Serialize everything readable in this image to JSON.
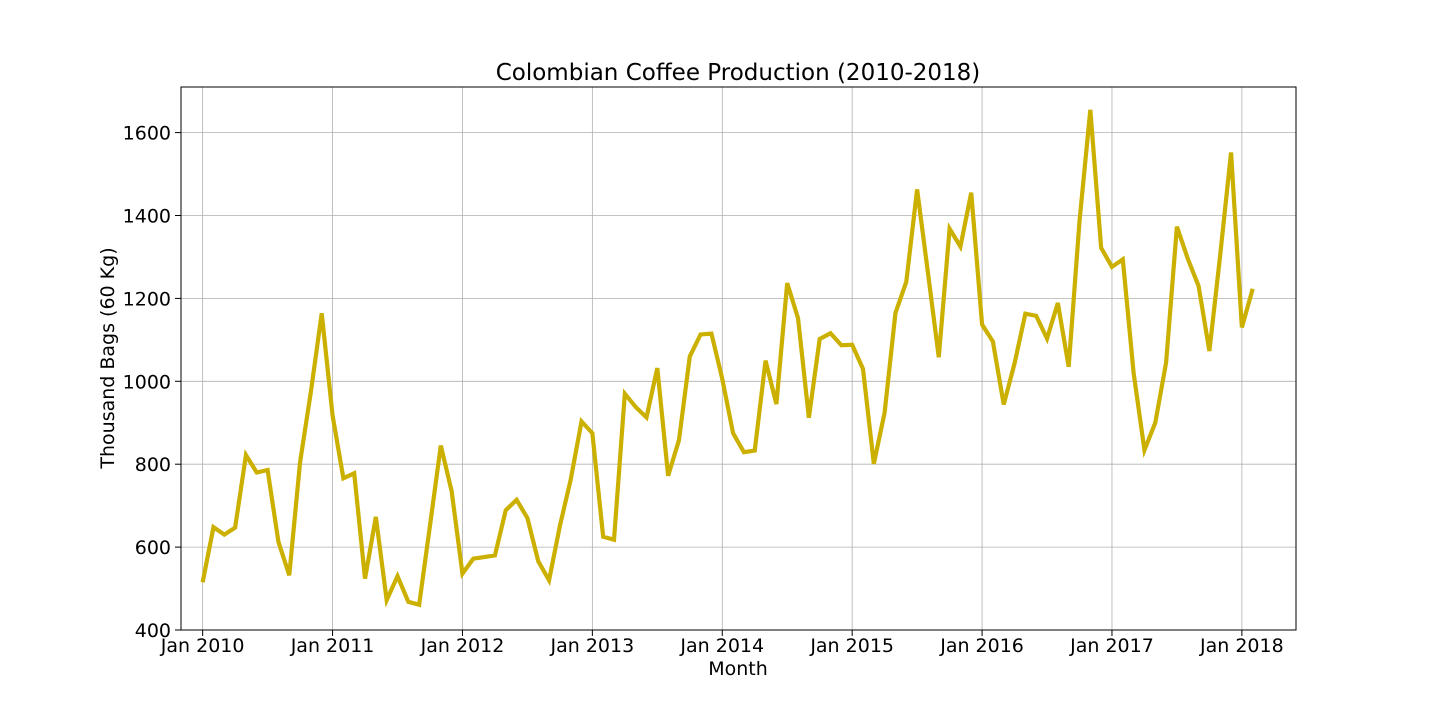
{
  "chart_data": {
    "type": "line",
    "title": "Colombian Coffee Production (2010-2018)",
    "xlabel": "Month",
    "ylabel": "Thousand Bags (60 Kg)",
    "ylim": [
      400,
      1710
    ],
    "xlim": [
      "2009-11",
      "2018-06"
    ],
    "grid": true,
    "line_color": "#ccb000",
    "yticks": [
      400,
      600,
      800,
      1000,
      1200,
      1400,
      1600
    ],
    "xticks": [
      {
        "date": "2010-01",
        "label": "Jan 2010"
      },
      {
        "date": "2011-01",
        "label": "Jan 2011"
      },
      {
        "date": "2012-01",
        "label": "Jan 2012"
      },
      {
        "date": "2013-01",
        "label": "Jan 2013"
      },
      {
        "date": "2014-01",
        "label": "Jan 2014"
      },
      {
        "date": "2015-01",
        "label": "Jan 2015"
      },
      {
        "date": "2016-01",
        "label": "Jan 2016"
      },
      {
        "date": "2017-01",
        "label": "Jan 2017"
      },
      {
        "date": "2018-01",
        "label": "Jan 2018"
      }
    ],
    "series": [
      {
        "x": [
          "2010-01",
          "2010-02",
          "2010-03",
          "2010-04",
          "2010-05",
          "2010-06",
          "2010-07",
          "2010-08",
          "2010-09",
          "2010-10",
          "2010-11",
          "2010-12",
          "2011-01",
          "2011-02",
          "2011-03",
          "2011-04",
          "2011-05",
          "2011-06",
          "2011-07",
          "2011-08",
          "2011-09",
          "2011-10",
          "2011-11",
          "2011-12",
          "2012-01",
          "2012-02",
          "2012-03",
          "2012-04",
          "2012-05",
          "2012-06",
          "2012-07",
          "2012-08",
          "2012-09",
          "2012-10",
          "2012-11",
          "2012-12",
          "2013-01",
          "2013-02",
          "2013-03",
          "2013-04",
          "2013-05",
          "2013-06",
          "2013-07",
          "2013-08",
          "2013-09",
          "2013-10",
          "2013-11",
          "2013-12",
          "2014-01",
          "2014-02",
          "2014-03",
          "2014-04",
          "2014-05",
          "2014-06",
          "2014-07",
          "2014-08",
          "2014-09",
          "2014-10",
          "2014-11",
          "2014-12",
          "2015-01",
          "2015-02",
          "2015-03",
          "2015-04",
          "2015-05",
          "2015-06",
          "2015-07",
          "2015-08",
          "2015-09",
          "2015-10",
          "2015-11",
          "2015-12",
          "2016-01",
          "2016-02",
          "2016-03",
          "2016-04",
          "2016-05",
          "2016-06",
          "2016-07",
          "2016-08",
          "2016-09",
          "2016-10",
          "2016-11",
          "2016-12",
          "2017-01",
          "2017-02",
          "2017-03",
          "2017-04",
          "2017-05",
          "2017-06",
          "2017-07",
          "2017-08",
          "2017-09",
          "2017-10",
          "2017-11",
          "2017-12",
          "2018-01",
          "2018-02"
        ],
        "values": [
          515,
          648,
          630,
          647,
          822,
          780,
          786,
          613,
          532,
          805,
          975,
          1164,
          918,
          766,
          778,
          524,
          673,
          472,
          530,
          468,
          461,
          652,
          845,
          735,
          536,
          572,
          576,
          580,
          689,
          714,
          670,
          566,
          520,
          651,
          763,
          903,
          875,
          625,
          618,
          970,
          938,
          913,
          1032,
          772,
          858,
          1060,
          1113,
          1115,
          1006,
          875,
          829,
          833,
          1050,
          945,
          1237,
          1152,
          912,
          1102,
          1116,
          1087,
          1088,
          1030,
          801,
          925,
          1165,
          1240,
          1463,
          1262,
          1058,
          1368,
          1325,
          1455,
          1137,
          1096,
          944,
          1043,
          1163,
          1158,
          1103,
          1189,
          1035,
          1386,
          1655,
          1322,
          1276,
          1294,
          1020,
          834,
          900,
          1045,
          1373,
          1296,
          1230,
          1073,
          1305,
          1552,
          1130,
          1223
        ]
      }
    ]
  }
}
